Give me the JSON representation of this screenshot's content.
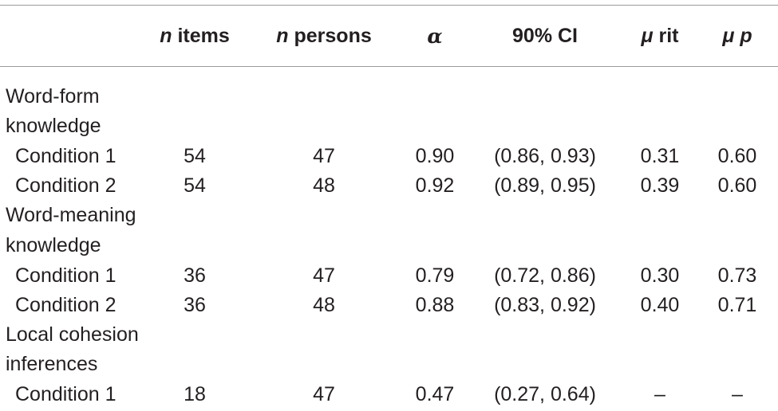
{
  "header": {
    "n_items": {
      "italic": "n",
      "rest": " items"
    },
    "n_persons": {
      "italic": "n",
      "rest": " persons"
    },
    "alpha": "α",
    "ci": "90% CI",
    "mu_rit": {
      "italic": "μ",
      "rest": " rit"
    },
    "mu_p": {
      "italic": "μ p",
      "rest": ""
    }
  },
  "sections": [
    {
      "label_line1": "Word-form",
      "label_line2": "knowledge",
      "rows": [
        {
          "label": "Condition 1",
          "n_items": "54",
          "n_persons": "47",
          "alpha": "0.90",
          "ci": "(0.86, 0.93)",
          "mu_rit": "0.31",
          "mu_p": "0.60"
        },
        {
          "label": "Condition 2",
          "n_items": "54",
          "n_persons": "48",
          "alpha": "0.92",
          "ci": "(0.89, 0.95)",
          "mu_rit": "0.39",
          "mu_p": "0.60"
        }
      ]
    },
    {
      "label_line1": "Word-meaning",
      "label_line2": "knowledge",
      "rows": [
        {
          "label": "Condition 1",
          "n_items": "36",
          "n_persons": "47",
          "alpha": "0.79",
          "ci": "(0.72, 0.86)",
          "mu_rit": "0.30",
          "mu_p": "0.73"
        },
        {
          "label": "Condition 2",
          "n_items": "36",
          "n_persons": "48",
          "alpha": "0.88",
          "ci": "(0.83, 0.92)",
          "mu_rit": "0.40",
          "mu_p": "0.71"
        }
      ]
    },
    {
      "label_line1": "Local cohesion",
      "label_line2": "inferences",
      "rows": [
        {
          "label": "Condition 1",
          "n_items": "18",
          "n_persons": "47",
          "alpha": "0.47",
          "ci": "(0.27, 0.64)",
          "mu_rit": "–",
          "mu_p": "–"
        }
      ]
    }
  ]
}
